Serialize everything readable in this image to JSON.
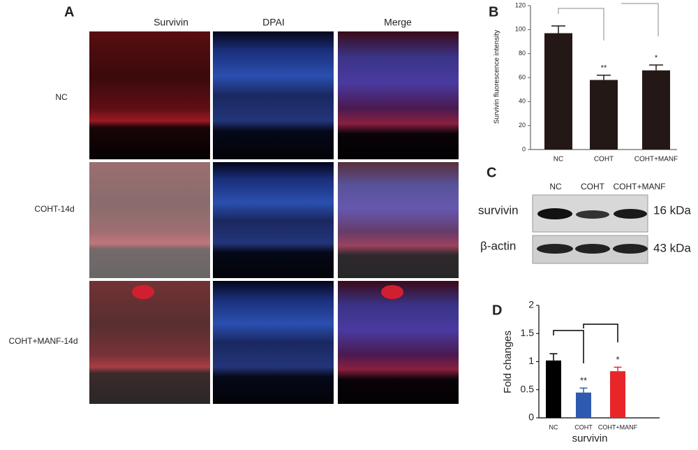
{
  "panel_a": {
    "label": "A",
    "columns": [
      "Survivin",
      "DPAI",
      "Merge"
    ],
    "rows": [
      "NC",
      "COHT-14d",
      "COHT+MANF-14d"
    ]
  },
  "panel_c": {
    "label": "C",
    "lanes": [
      "NC",
      "COHT",
      "COHT+MANF"
    ],
    "bands": [
      {
        "name": "survivin",
        "size": "16 kDa"
      },
      {
        "name": "β-actin",
        "size": "43 kDa"
      }
    ]
  },
  "chart_data": [
    {
      "type": "bar",
      "panel": "B",
      "y_label": "Survivin fluorescence intensity",
      "categories": [
        "NC",
        "COHT",
        "COHT+MANF"
      ],
      "values": [
        97,
        58,
        66
      ],
      "errors": [
        6,
        4,
        4.5
      ],
      "annotations": [
        null,
        "**",
        "*"
      ],
      "colors": [
        "#231815",
        "#231815",
        "#231815"
      ],
      "ylim": [
        0,
        120
      ],
      "yticks": [
        0,
        20,
        40,
        60,
        80,
        100,
        120
      ]
    },
    {
      "type": "bar",
      "panel": "D",
      "y_label": "Fold changes",
      "x_label": "survivin",
      "categories": [
        "NC",
        "COHT",
        "COHT+MANF"
      ],
      "values": [
        1.02,
        0.45,
        0.83
      ],
      "errors": [
        0.12,
        0.08,
        0.07
      ],
      "annotations": [
        null,
        "**",
        "*"
      ],
      "colors": [
        "#000000",
        "#2e5bb0",
        "#e8262a"
      ],
      "ylim": [
        0,
        2
      ],
      "yticks": [
        0,
        0.5,
        1,
        1.5,
        2
      ]
    }
  ]
}
